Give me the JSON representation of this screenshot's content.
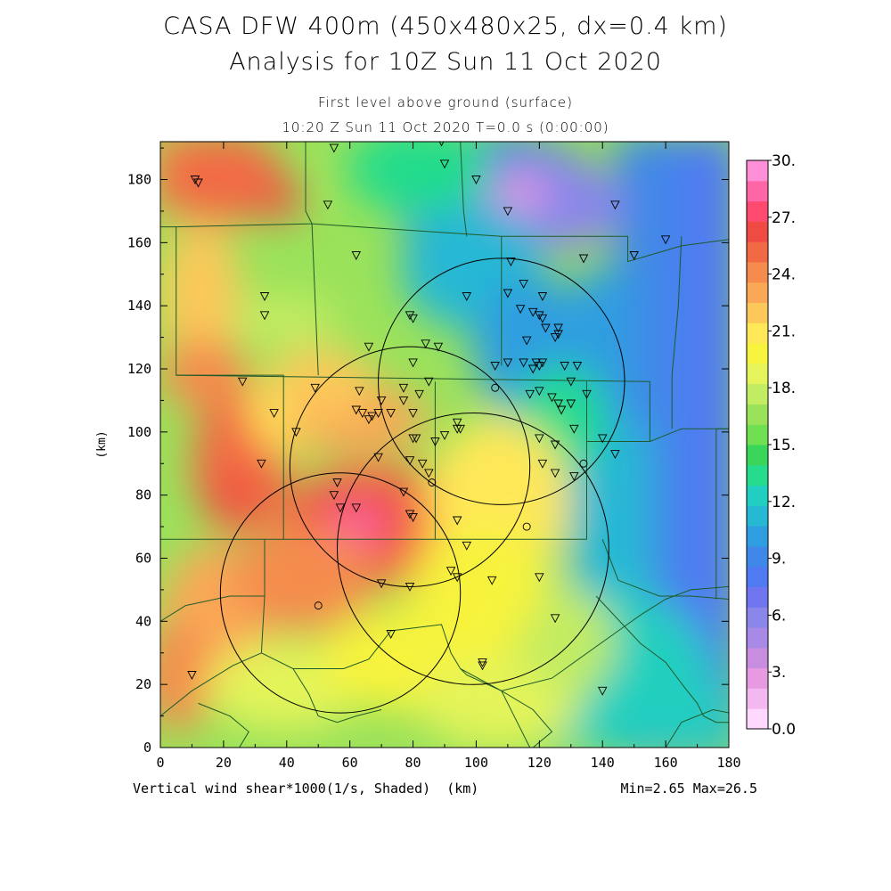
{
  "title_line1": "CASA DFW 400m (450x480x25, dx=0.4 km)",
  "title_line2": "Analysis for 10Z Sun 11 Oct 2020",
  "subtitle_level": "First level above ground (surface)",
  "subtitle_time": "10:20 Z Sun 11 Oct 2020   T=0.0 s (0:00:00)",
  "x_axis": {
    "label": "(km)",
    "range": [
      0,
      180
    ],
    "ticks": [
      "0",
      "20",
      "40",
      "60",
      "80",
      "100",
      "120",
      "140",
      "160",
      "180"
    ]
  },
  "y_axis": {
    "label": "(km)",
    "range": [
      0,
      192
    ],
    "ticks": [
      "0",
      "20",
      "40",
      "60",
      "80",
      "100",
      "120",
      "140",
      "160",
      "180"
    ]
  },
  "field_label": "Vertical wind shear*1000(1/s, Shaded)",
  "field_unit_label": "(km)",
  "minmax_label": "Min=2.65 Max=26.5",
  "colorbar": {
    "labels": [
      "30.",
      "27.",
      "24.",
      "21.",
      "18.",
      "15.",
      "12.",
      "9.",
      "6.",
      "3.",
      "0.0"
    ],
    "colors": [
      "#ffd8ff",
      "#f2b8ef",
      "#e79ae0",
      "#c78ee0",
      "#a889e6",
      "#8a86ea",
      "#7076f0",
      "#4f7af2",
      "#3f88e8",
      "#2f9ee0",
      "#27b8d4",
      "#20cfbf",
      "#24dc8c",
      "#3ad65a",
      "#6ee052",
      "#9ae25a",
      "#c2ec62",
      "#e4f45a",
      "#f7f33e",
      "#ffe858",
      "#fdc85a",
      "#faa856",
      "#f58c4e",
      "#f26a44",
      "#ef4b42",
      "#ff4a70",
      "#ff66a6",
      "#ff90d8"
    ]
  },
  "radar_circles": [
    {
      "cx": 108,
      "cy": 116,
      "r": 39
    },
    {
      "cx": 79,
      "cy": 89,
      "r": 38
    },
    {
      "cx": 99,
      "cy": 63,
      "r": 43
    },
    {
      "cx": 57,
      "cy": 49,
      "r": 38
    }
  ],
  "stations": [
    [
      11,
      180
    ],
    [
      12,
      179
    ],
    [
      55,
      190
    ],
    [
      89,
      192
    ],
    [
      90,
      185
    ],
    [
      100,
      180
    ],
    [
      53,
      172
    ],
    [
      110,
      170
    ],
    [
      144,
      172
    ],
    [
      160,
      161
    ],
    [
      150,
      156
    ],
    [
      62,
      156
    ],
    [
      134,
      155
    ],
    [
      111,
      154
    ],
    [
      33,
      143
    ],
    [
      33,
      137
    ],
    [
      97,
      143
    ],
    [
      110,
      144
    ],
    [
      115,
      147
    ],
    [
      121,
      143
    ],
    [
      126,
      133
    ],
    [
      79,
      137
    ],
    [
      80,
      136
    ],
    [
      114,
      139
    ],
    [
      118,
      138
    ],
    [
      120,
      137
    ],
    [
      121,
      136
    ],
    [
      116,
      129
    ],
    [
      122,
      133
    ],
    [
      126,
      131
    ],
    [
      125,
      130
    ],
    [
      84,
      128
    ],
    [
      88,
      127
    ],
    [
      66,
      127
    ],
    [
      80,
      122
    ],
    [
      106,
      121
    ],
    [
      110,
      122
    ],
    [
      115,
      122
    ],
    [
      119,
      122
    ],
    [
      120,
      121
    ],
    [
      121,
      122
    ],
    [
      118,
      120
    ],
    [
      128,
      121
    ],
    [
      132,
      121
    ],
    [
      130,
      116
    ],
    [
      26,
      116
    ],
    [
      49,
      114
    ],
    [
      63,
      113
    ],
    [
      77,
      114
    ],
    [
      85,
      116
    ],
    [
      82,
      112
    ],
    [
      124,
      111
    ],
    [
      120,
      113
    ],
    [
      117,
      112
    ],
    [
      135,
      112
    ],
    [
      70,
      110
    ],
    [
      77,
      110
    ],
    [
      126,
      109
    ],
    [
      127,
      107
    ],
    [
      130,
      109
    ],
    [
      36,
      106
    ],
    [
      62,
      107
    ],
    [
      64,
      106
    ],
    [
      69,
      106
    ],
    [
      66,
      104
    ],
    [
      67,
      105
    ],
    [
      73,
      106
    ],
    [
      80,
      106
    ],
    [
      94,
      103
    ],
    [
      94,
      101
    ],
    [
      95,
      101
    ],
    [
      43,
      100
    ],
    [
      90,
      99
    ],
    [
      80,
      98
    ],
    [
      81,
      98
    ],
    [
      87,
      97
    ],
    [
      120,
      98
    ],
    [
      125,
      96
    ],
    [
      140,
      98
    ],
    [
      131,
      101
    ],
    [
      144,
      93
    ],
    [
      32,
      90
    ],
    [
      56,
      84
    ],
    [
      69,
      92
    ],
    [
      79,
      91
    ],
    [
      83,
      90
    ],
    [
      85,
      87
    ],
    [
      121,
      90
    ],
    [
      125,
      87
    ],
    [
      131,
      86
    ],
    [
      77,
      81
    ],
    [
      55,
      80
    ],
    [
      57,
      76
    ],
    [
      62,
      76
    ],
    [
      79,
      74
    ],
    [
      80,
      73
    ],
    [
      94,
      72
    ],
    [
      97,
      64
    ],
    [
      92,
      56
    ],
    [
      94,
      54
    ],
    [
      105,
      53
    ],
    [
      120,
      54
    ],
    [
      70,
      52
    ],
    [
      79,
      51
    ],
    [
      125,
      41
    ],
    [
      73,
      36
    ],
    [
      102,
      27
    ],
    [
      102,
      26
    ],
    [
      140,
      18
    ],
    [
      10,
      23
    ]
  ],
  "circle_markers": [
    [
      106,
      114
    ],
    [
      86,
      84
    ],
    [
      116,
      70
    ],
    [
      134,
      90
    ],
    [
      50,
      45
    ]
  ],
  "boundaries": [
    [
      [
        46,
        192
      ],
      [
        46,
        170
      ],
      [
        48,
        166
      ],
      [
        5,
        165
      ],
      [
        5,
        118
      ],
      [
        39,
        118
      ],
      [
        39,
        66
      ],
      [
        0,
        66
      ]
    ],
    [
      [
        0,
        165
      ],
      [
        5,
        165
      ]
    ],
    [
      [
        48,
        166
      ],
      [
        108,
        162
      ],
      [
        148,
        162
      ],
      [
        148,
        154
      ],
      [
        165,
        159
      ],
      [
        180,
        161
      ]
    ],
    [
      [
        108,
        162
      ],
      [
        108,
        121
      ]
    ],
    [
      [
        95,
        192
      ],
      [
        96,
        170
      ],
      [
        97,
        162
      ]
    ],
    [
      [
        48,
        166
      ],
      [
        50,
        118
      ]
    ],
    [
      [
        5,
        118
      ],
      [
        155,
        116
      ]
    ],
    [
      [
        155,
        116
      ],
      [
        155,
        97
      ],
      [
        165,
        101
      ],
      [
        180,
        101
      ]
    ],
    [
      [
        155,
        97
      ],
      [
        135,
        97
      ]
    ],
    [
      [
        135,
        116
      ],
      [
        135,
        66
      ]
    ],
    [
      [
        39,
        66
      ],
      [
        135,
        66
      ]
    ],
    [
      [
        87,
        116
      ],
      [
        87,
        66
      ]
    ],
    [
      [
        0,
        66
      ],
      [
        0,
        40
      ],
      [
        8,
        45
      ]
    ],
    [
      [
        33,
        66
      ],
      [
        33,
        48
      ]
    ],
    [
      [
        8,
        45
      ],
      [
        22,
        48
      ],
      [
        33,
        48
      ]
    ],
    [
      [
        33,
        48
      ],
      [
        32,
        30
      ],
      [
        23,
        26
      ],
      [
        10,
        18
      ],
      [
        0,
        10
      ]
    ],
    [
      [
        32,
        30
      ],
      [
        42,
        25
      ],
      [
        58,
        25
      ],
      [
        66,
        28
      ],
      [
        73,
        37
      ],
      [
        89,
        39
      ],
      [
        92,
        30
      ],
      [
        95,
        25
      ],
      [
        97,
        23
      ]
    ],
    [
      [
        42,
        25
      ],
      [
        47,
        17
      ],
      [
        50,
        10
      ],
      [
        56,
        8
      ],
      [
        62,
        10
      ],
      [
        70,
        12
      ]
    ],
    [
      [
        97,
        23
      ],
      [
        108,
        18
      ],
      [
        118,
        12
      ],
      [
        124,
        5
      ],
      [
        118,
        0
      ]
    ],
    [
      [
        95,
        25
      ],
      [
        108,
        18
      ],
      [
        124,
        22
      ],
      [
        145,
        37
      ],
      [
        152,
        42
      ],
      [
        160,
        47
      ],
      [
        168,
        50
      ],
      [
        180,
        51
      ]
    ],
    [
      [
        108,
        18
      ],
      [
        117,
        0
      ]
    ],
    [
      [
        140,
        66
      ],
      [
        145,
        53
      ],
      [
        158,
        48
      ],
      [
        168,
        48
      ],
      [
        180,
        47
      ]
    ],
    [
      [
        180,
        101
      ],
      [
        176,
        101
      ],
      [
        176,
        47
      ]
    ],
    [
      [
        160,
        0
      ],
      [
        165,
        8
      ],
      [
        175,
        12
      ],
      [
        180,
        11
      ]
    ],
    [
      [
        138,
        48
      ],
      [
        152,
        33
      ],
      [
        160,
        27
      ],
      [
        166,
        19
      ],
      [
        170,
        14
      ],
      [
        172,
        10
      ],
      [
        176,
        8
      ],
      [
        180,
        8
      ]
    ],
    [
      [
        25,
        0
      ],
      [
        28,
        5
      ],
      [
        22,
        10
      ],
      [
        12,
        14
      ]
    ],
    [
      [
        165,
        162
      ],
      [
        164,
        140
      ],
      [
        162,
        118
      ],
      [
        162,
        101
      ]
    ]
  ]
}
